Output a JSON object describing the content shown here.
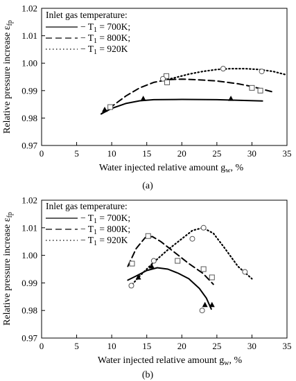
{
  "chart_data": [
    {
      "type": "scatter",
      "panel": "a",
      "caption": "(a)",
      "xlabel": "Water injected relative amount g",
      "xlabel_sub": "w",
      "xlabel_suffix": ", %",
      "ylabel": "Relative pressure increase  ε",
      "ylabel_sub": "fp",
      "xlim": [
        0,
        35
      ],
      "ylim": [
        0.97,
        1.02
      ],
      "xticks": [
        0,
        5,
        10,
        15,
        20,
        25,
        30,
        35
      ],
      "yticks": [
        "0.97",
        "0.98",
        "0.99",
        "1.00",
        "1.01",
        "1.02"
      ],
      "grid": false,
      "legend": {
        "position": "top-left",
        "title": "Inlet gas temperature:",
        "entries": [
          {
            "prefix": "− T",
            "sub": "1",
            "suffix": " = 700K;"
          },
          {
            "prefix": "− T",
            "sub": "1",
            "suffix": " = 800K;"
          },
          {
            "prefix": "− T",
            "sub": "1",
            "suffix": " = 920K"
          }
        ]
      },
      "series": [
        {
          "style": "solid",
          "marker": "triangle",
          "points": [
            [
              9.0,
              0.983
            ],
            [
              14.5,
              0.987
            ],
            [
              27.0,
              0.987
            ]
          ],
          "fit": [
            [
              8.5,
              0.9815
            ],
            [
              10,
              0.9835
            ],
            [
              12,
              0.9853
            ],
            [
              14,
              0.9863
            ],
            [
              16,
              0.9867
            ],
            [
              20,
              0.9868
            ],
            [
              25,
              0.9867
            ],
            [
              28,
              0.9865
            ],
            [
              31.5,
              0.9862
            ]
          ]
        },
        {
          "style": "dashed",
          "marker": "square",
          "points": [
            [
              9.8,
              0.984
            ],
            [
              17.8,
              0.9953
            ],
            [
              17.9,
              0.993
            ],
            [
              30.0,
              0.991
            ],
            [
              31.2,
              0.99
            ]
          ],
          "fit": [
            [
              8.5,
              0.9815
            ],
            [
              10,
              0.9842
            ],
            [
              12,
              0.988
            ],
            [
              14,
              0.991
            ],
            [
              16,
              0.993
            ],
            [
              18,
              0.994
            ],
            [
              20,
              0.9942
            ],
            [
              22,
              0.994
            ],
            [
              25,
              0.9935
            ],
            [
              28,
              0.9925
            ],
            [
              30,
              0.9915
            ],
            [
              33,
              0.9895
            ]
          ]
        },
        {
          "style": "dotted",
          "marker": "circle",
          "points": [
            [
              17.3,
              0.9943
            ],
            [
              25.9,
              0.998
            ],
            [
              31.4,
              0.997
            ]
          ],
          "fit": [
            [
              17,
              0.9935
            ],
            [
              19,
              0.9947
            ],
            [
              21,
              0.996
            ],
            [
              23,
              0.997
            ],
            [
              25,
              0.9977
            ],
            [
              27,
              0.998
            ],
            [
              29,
              0.998
            ],
            [
              31,
              0.9977
            ],
            [
              33,
              0.997
            ],
            [
              35,
              0.9957
            ]
          ]
        }
      ]
    },
    {
      "type": "scatter",
      "panel": "b",
      "caption": "(b)",
      "xlabel": "Water injected relative amount g",
      "xlabel_sub": "w",
      "xlabel_suffix": ", %",
      "ylabel": "Relative pressure increase  ε",
      "ylabel_sub": "fp",
      "xlim": [
        0,
        35
      ],
      "ylim": [
        0.97,
        1.02
      ],
      "xticks": [
        0,
        5,
        10,
        15,
        20,
        25,
        30,
        35
      ],
      "yticks": [
        "0.97",
        "0.98",
        "0.99",
        "1.00",
        "1.01",
        "1.02"
      ],
      "grid": false,
      "legend": {
        "position": "top-left",
        "title": "Inlet gas temperature:",
        "entries": [
          {
            "prefix": "− T",
            "sub": "1",
            "suffix": " = 700K;"
          },
          {
            "prefix": "− T",
            "sub": "1",
            "suffix": " = 800K;"
          },
          {
            "prefix": "− T",
            "sub": "1",
            "suffix": " = 920K"
          }
        ]
      },
      "series": [
        {
          "style": "solid",
          "marker": "triangle",
          "points": [
            [
              13.8,
              0.992
            ],
            [
              15.7,
              0.996
            ],
            [
              23.3,
              0.982
            ],
            [
              24.3,
              0.982
            ]
          ],
          "fit": [
            [
              12.3,
              0.991
            ],
            [
              13.5,
              0.9925
            ],
            [
              15,
              0.9945
            ],
            [
              16.5,
              0.9955
            ],
            [
              18,
              0.995
            ],
            [
              19.5,
              0.9935
            ],
            [
              21,
              0.9915
            ],
            [
              22.5,
              0.988
            ],
            [
              23.5,
              0.9845
            ],
            [
              24.2,
              0.9805
            ]
          ]
        },
        {
          "style": "dashed",
          "marker": "square",
          "points": [
            [
              12.9,
              0.997
            ],
            [
              15.2,
              1.007
            ],
            [
              19.4,
              0.998
            ],
            [
              23.1,
              0.995
            ],
            [
              24.3,
              0.992
            ]
          ],
          "fit": [
            [
              12.3,
              0.996
            ],
            [
              13.5,
              1.0025
            ],
            [
              14.8,
              1.0065
            ],
            [
              15.8,
              1.0068
            ],
            [
              17,
              1.005
            ],
            [
              19,
              1.001
            ],
            [
              21,
              0.997
            ],
            [
              23,
              0.9935
            ],
            [
              24.5,
              0.9895
            ]
          ]
        },
        {
          "style": "dotted",
          "marker": "circle",
          "points": [
            [
              12.8,
              0.989
            ],
            [
              16.0,
              0.998
            ],
            [
              21.5,
              1.006
            ],
            [
              22.9,
              0.98
            ],
            [
              23.1,
              1.01
            ],
            [
              29.0,
              0.994
            ]
          ],
          "fit": [
            [
              12.6,
              0.9885
            ],
            [
              14,
              0.9925
            ],
            [
              16,
              0.9975
            ],
            [
              18,
              1.002
            ],
            [
              20,
              1.006
            ],
            [
              21.5,
              1.009
            ],
            [
              23,
              1.01
            ],
            [
              24.5,
              1.008
            ],
            [
              26,
              1.003
            ],
            [
              28,
              0.996
            ],
            [
              30,
              0.9915
            ]
          ]
        }
      ]
    }
  ]
}
